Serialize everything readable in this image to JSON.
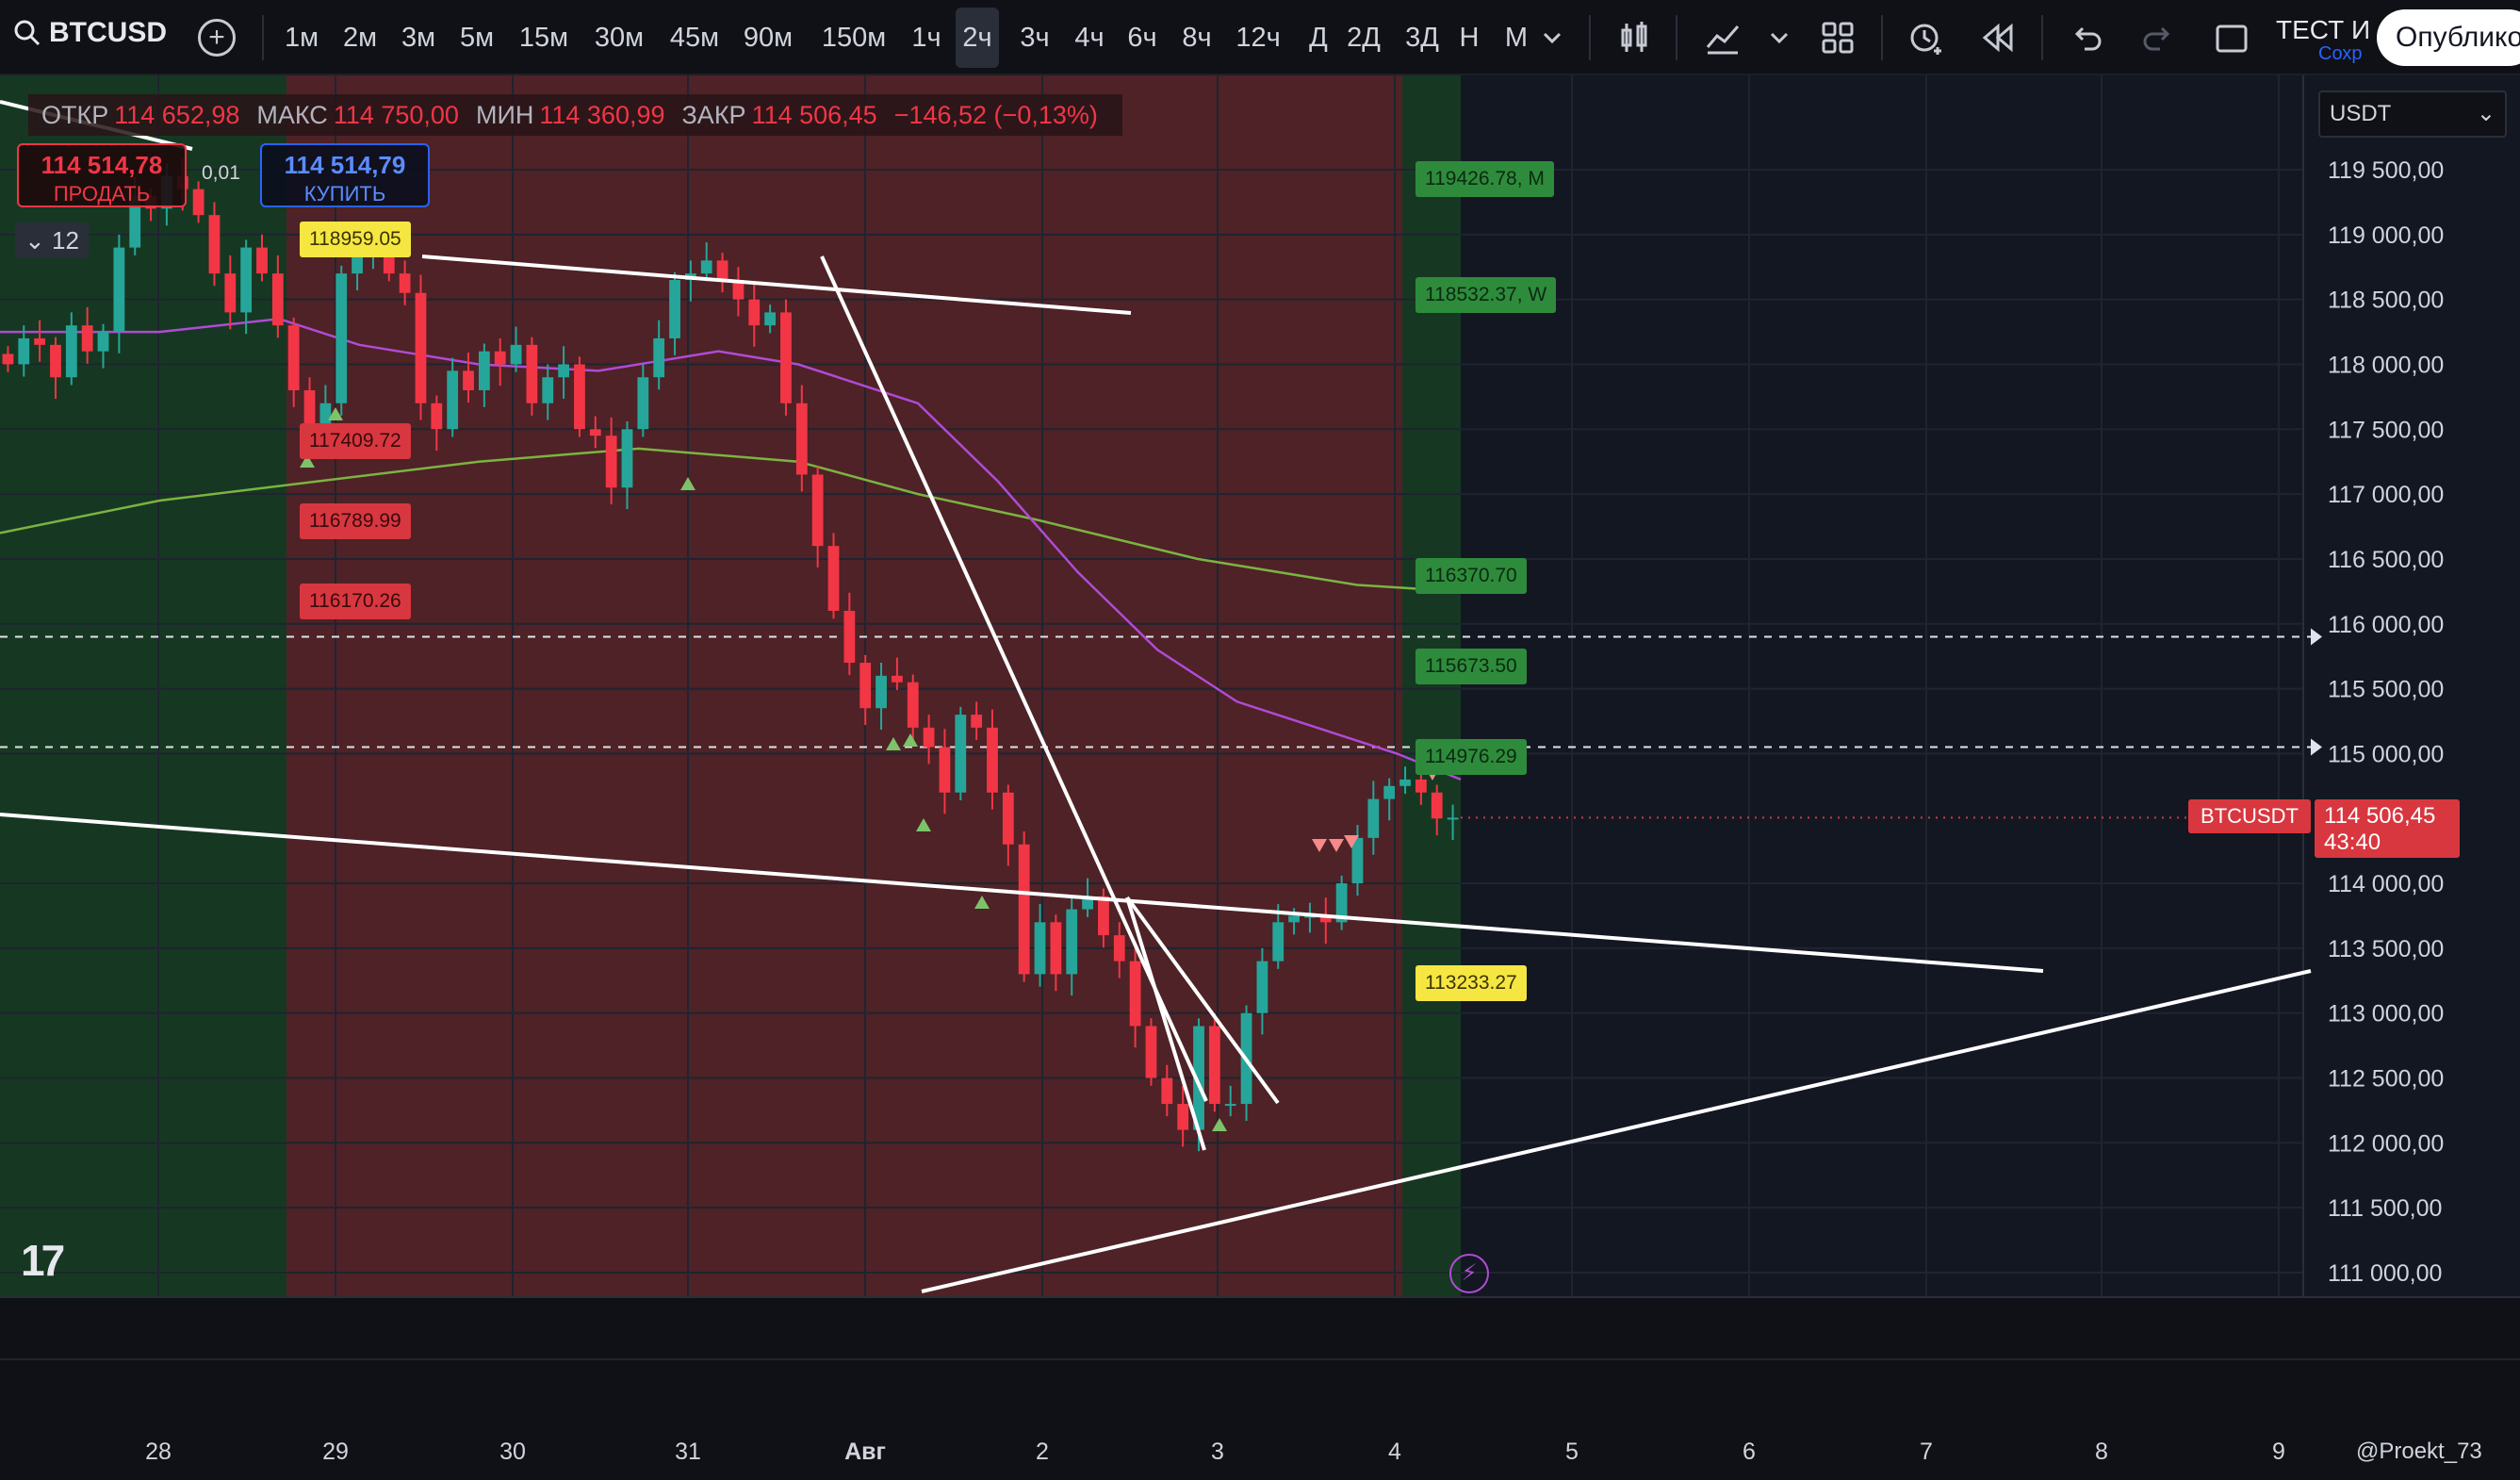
{
  "toolbar": {
    "symbol": "BTCUSD",
    "search_icon": "search-icon",
    "timeframes": [
      "1м",
      "2м",
      "3м",
      "5м",
      "15м",
      "30м",
      "45м",
      "90м",
      "150м",
      "1ч",
      "2ч",
      "3ч",
      "4ч",
      "6ч",
      "8ч",
      "12ч",
      "Д",
      "2Д",
      "3Д",
      "Н",
      "М"
    ],
    "active_timeframe": "2ч",
    "layout_name": "ТЕСТ И",
    "save_hint": "Сохр",
    "publish_label": "Опублико"
  },
  "legend": {
    "open_label": "ОТКР",
    "open": "114 652,98",
    "high_label": "МАКС",
    "high": "114 750,00",
    "low_label": "МИН",
    "low": "114 360,99",
    "close_label": "ЗАКР",
    "close": "114 506,45",
    "change": "−146,52 (−0,13%)"
  },
  "trade": {
    "sell_price": "114 514,78",
    "sell_label": "ПРОДАТЬ",
    "buy_price": "114 514,79",
    "buy_label": "КУПИТЬ",
    "spread": "0,01",
    "indicators_count": "12"
  },
  "currency_selector": "USDT",
  "price_tag": {
    "symbol": "BTCUSDT",
    "price": "114 506,45",
    "countdown": "43:40"
  },
  "level_tags": {
    "green": [
      {
        "text": "119426.78, M",
        "price": 119426.78
      },
      {
        "text": "118532.37, W",
        "price": 118532.37
      },
      {
        "text": "116370.70",
        "price": 116370.7
      },
      {
        "text": "115673.50",
        "price": 115673.5
      },
      {
        "text": "114976.29",
        "price": 114976.29
      }
    ],
    "red": [
      {
        "text": "117409.72",
        "price": 117409.72
      },
      {
        "text": "116789.99",
        "price": 116789.99
      },
      {
        "text": "116170.26",
        "price": 116170.26
      }
    ],
    "yellow": [
      {
        "text": "118959.05",
        "price": 118959.05
      },
      {
        "text": "113233.27",
        "price": 113233.27
      }
    ]
  },
  "chart_data": {
    "type": "candlestick",
    "price_axis": [
      "119 500,00",
      "119 000,00",
      "118 500,00",
      "118 000,00",
      "117 500,00",
      "117 000,00",
      "116 500,00",
      "116 000,00",
      "115 500,00",
      "115 000,00",
      "114 000,00",
      "113 500,00",
      "113 000,00",
      "112 500,00",
      "112 000,00",
      "111 500,00",
      "111 000,00"
    ],
    "price_axis_values": [
      119500,
      119000,
      118500,
      118000,
      117500,
      117000,
      116500,
      116000,
      115500,
      115000,
      114000,
      113500,
      113000,
      112500,
      112000,
      111500,
      111000
    ],
    "time_axis": [
      "28",
      "29",
      "30",
      "31",
      "Авг",
      "2",
      "3",
      "4",
      "5",
      "6",
      "7",
      "8",
      "9"
    ],
    "ylim": [
      110800,
      119900
    ],
    "current_price": 114506.45,
    "dashed_levels": [
      115900,
      115050
    ],
    "candles_close_path": [
      118000,
      118200,
      118150,
      117900,
      118300,
      118100,
      118250,
      118900,
      119300,
      119200,
      119450,
      119350,
      119150,
      118700,
      118400,
      118900,
      118700,
      118300,
      117800,
      117500,
      117700,
      118700,
      118900,
      118950,
      118700,
      118550,
      117700,
      117500,
      117950,
      117800,
      118100,
      118000,
      118150,
      117700,
      117900,
      118000,
      117500,
      117450,
      117050,
      117500,
      117900,
      118200,
      118650,
      118700,
      118800,
      118650,
      118500,
      118300,
      118400,
      117700,
      117150,
      116600,
      116100,
      115700,
      115350,
      115600,
      115550,
      115200,
      115050,
      114700,
      115300,
      115200,
      114700,
      114300,
      113300,
      113700,
      113300,
      113800,
      113900,
      113600,
      113400,
      112900,
      112500,
      112300,
      112100,
      112900,
      112300,
      112300,
      113000,
      113400,
      113700,
      113750,
      113750,
      113700,
      114000,
      114350,
      114650,
      114750,
      114800,
      114700,
      114500,
      114506
    ],
    "ma_magenta": [
      [
        0,
        118250
      ],
      [
        20,
        118250
      ],
      [
        35,
        118350
      ],
      [
        45,
        118150
      ],
      [
        60,
        118000
      ],
      [
        75,
        117950
      ],
      [
        90,
        118100
      ],
      [
        100,
        118000
      ],
      [
        115,
        117700
      ],
      [
        125,
        117100
      ],
      [
        135,
        116400
      ],
      [
        145,
        115800
      ],
      [
        155,
        115400
      ],
      [
        165,
        115200
      ],
      [
        175,
        115000
      ],
      [
        183,
        114800
      ]
    ],
    "ma_green": [
      [
        0,
        116700
      ],
      [
        20,
        116950
      ],
      [
        40,
        117100
      ],
      [
        60,
        117250
      ],
      [
        80,
        117350
      ],
      [
        100,
        117250
      ],
      [
        115,
        117000
      ],
      [
        130,
        116800
      ],
      [
        150,
        116500
      ],
      [
        170,
        116300
      ],
      [
        183,
        116250
      ]
    ]
  }
}
